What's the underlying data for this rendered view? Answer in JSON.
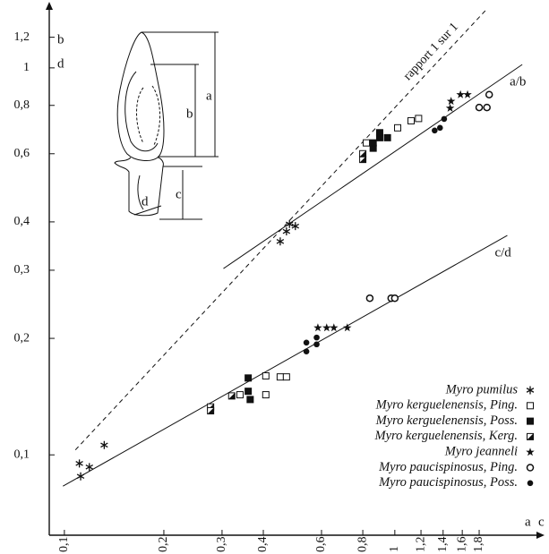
{
  "chart_data": {
    "type": "scatter",
    "xscale": "log",
    "yscale": "log",
    "xlim": [
      0.09,
      2.7
    ],
    "ylim": [
      0.062,
      1.42
    ],
    "xticks": [
      {
        "value": 0.1,
        "label": "0,1"
      },
      {
        "value": 0.2,
        "label": "0,2"
      },
      {
        "value": 0.3,
        "label": "0,3"
      },
      {
        "value": 0.4,
        "label": "0,4"
      },
      {
        "value": 0.6,
        "label": "0,6"
      },
      {
        "value": 0.8,
        "label": "0,8"
      },
      1,
      {
        "value": 1.2,
        "label": "1,2"
      },
      {
        "value": 1.4,
        "label": "1,4"
      },
      {
        "value": 1.6,
        "label": "1,6"
      },
      {
        "value": 1.8,
        "label": "1,8"
      }
    ],
    "yticks": [
      {
        "value": 0.1,
        "label": "0,1"
      },
      {
        "value": 0.2,
        "label": "0,2"
      },
      {
        "value": 0.3,
        "label": "0,3"
      },
      {
        "value": 0.4,
        "label": "0,4"
      },
      {
        "value": 0.6,
        "label": "0,6"
      },
      {
        "value": 0.8,
        "label": "0,8"
      },
      1,
      {
        "value": 1.2,
        "label": "1,2"
      }
    ],
    "xlabel": "a",
    "xlabel2": "c",
    "ylabel": "b",
    "ylabel2": "d",
    "legend": "bottom-right",
    "color": "#111111",
    "series": [
      {
        "name": "Myro pumilus",
        "marker": "asterisk",
        "x": [
          0.111,
          0.112,
          0.119,
          0.132,
          0.45,
          0.47,
          0.48,
          0.5
        ],
        "y": [
          0.095,
          0.088,
          0.093,
          0.106,
          0.356,
          0.378,
          0.395,
          0.39
        ]
      },
      {
        "name": "Myro kerguelenensis, Ping.",
        "marker": "square-open",
        "x": [
          0.34,
          0.407,
          0.407,
          0.45,
          0.47,
          0.82,
          1.02,
          1.12,
          1.18
        ],
        "y": [
          0.143,
          0.143,
          0.16,
          0.159,
          0.159,
          0.64,
          0.7,
          0.73,
          0.74
        ]
      },
      {
        "name": "Myro kerguelenensis, Poss.",
        "marker": "square",
        "x": [
          0.36,
          0.36,
          0.365,
          0.86,
          0.86,
          0.9,
          0.9,
          0.95
        ],
        "y": [
          0.158,
          0.146,
          0.139,
          0.62,
          0.64,
          0.66,
          0.68,
          0.66
        ]
      },
      {
        "name": "Myro kerguelenensis, Kerg.",
        "marker": "square-half",
        "x": [
          0.277,
          0.277,
          0.321,
          0.8,
          0.8
        ],
        "y": [
          0.133,
          0.13,
          0.142,
          0.58,
          0.6
        ]
      },
      {
        "name": "Myro jeanneli",
        "marker": "star",
        "x": [
          0.585,
          0.622,
          0.654,
          0.718,
          1.47,
          1.48,
          1.58,
          1.66
        ],
        "y": [
          0.213,
          0.213,
          0.213,
          0.213,
          0.787,
          0.82,
          0.853,
          0.853
        ]
      },
      {
        "name": "Myro paucispinosus, Ping.",
        "marker": "circle-open",
        "x": [
          0.84,
          0.975,
          1.0,
          1.8,
          1.9,
          1.93
        ],
        "y": [
          0.254,
          0.254,
          0.254,
          0.79,
          0.79,
          0.853
        ]
      },
      {
        "name": "Myro paucispinosus, Poss.",
        "marker": "circle",
        "x": [
          0.54,
          0.54,
          0.58,
          0.58,
          1.32,
          1.37,
          1.41
        ],
        "y": [
          0.195,
          0.185,
          0.201,
          0.193,
          0.689,
          0.7,
          0.738
        ]
      }
    ],
    "lines": [
      {
        "label": "a/b",
        "dashed": false,
        "x": [
          0.303,
          2.43
        ],
        "y": [
          0.303,
          1.02
        ]
      },
      {
        "label": "c/d",
        "dashed": false,
        "x": [
          0.099,
          2.19
        ],
        "y": [
          0.083,
          0.369
        ]
      },
      {
        "label": "rapport 1 sur 1",
        "dashed": true,
        "x": [
          0.108,
          1.9
        ],
        "y": [
          0.103,
          1.42
        ]
      }
    ],
    "inset_labels": [
      "a",
      "b",
      "c",
      "d"
    ]
  }
}
